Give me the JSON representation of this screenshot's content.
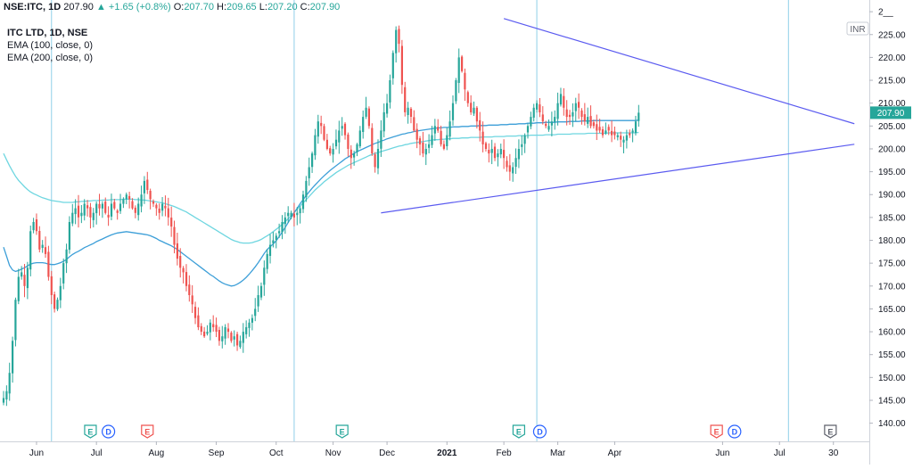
{
  "header": {
    "symbol": "NSE:ITC, 1D",
    "last": "207.90",
    "change": "▲ +1.65 (+0.8%)",
    "o_label": "O:",
    "o_value": "207.70",
    "h_label": "H:",
    "h_value": "209.65",
    "l_label": "L:",
    "l_value": "207.20",
    "c_label": "C:",
    "c_value": "207.90"
  },
  "legend": {
    "title": "ITC LTD, 1D, NSE",
    "ema1": "EMA (100, close, 0)",
    "ema2": "EMA (200, close, 0)"
  },
  "currency_badge": "INR",
  "price_label": "207.90",
  "colors": {
    "up": "#26a69a",
    "down": "#ef5350",
    "ema100": "#3d9fd8",
    "ema200": "#6ed6e0",
    "trendline": "#5b5bf0",
    "vline": "#8fcfe8",
    "price_badge": "#26a69a"
  },
  "chart_data": {
    "type": "candlestick",
    "ylim": [
      137,
      231
    ],
    "yticks": [
      "140.00",
      "145.00",
      "150.00",
      "155.00",
      "160.00",
      "165.00",
      "170.00",
      "175.00",
      "180.00",
      "185.00",
      "190.00",
      "195.00",
      "200.00",
      "205.00",
      "210.00",
      "215.00",
      "220.00",
      "225.00",
      "2__"
    ],
    "x_axis_labels": [
      {
        "label": "Jun",
        "index": 11
      },
      {
        "label": "Jul",
        "index": 31
      },
      {
        "label": "Aug",
        "index": 51
      },
      {
        "label": "Sep",
        "index": 71
      },
      {
        "label": "Oct",
        "index": 91
      },
      {
        "label": "Nov",
        "index": 110
      },
      {
        "label": "Dec",
        "index": 128
      },
      {
        "label": "2021",
        "index": 148
      },
      {
        "label": "Feb",
        "index": 167
      },
      {
        "label": "Mar",
        "index": 185
      },
      {
        "label": "Apr",
        "index": 204
      },
      {
        "label": "Jun",
        "index": 240
      },
      {
        "label": "Jul",
        "index": 259
      },
      {
        "label": "30",
        "index": 277
      }
    ],
    "vertical_lines": [
      16,
      97,
      178,
      262
    ],
    "event_markers": [
      {
        "type": "E",
        "index": 29,
        "color": "green"
      },
      {
        "type": "D",
        "index": 35,
        "color": "blue"
      },
      {
        "type": "E",
        "index": 48,
        "color": "red"
      },
      {
        "type": "E",
        "index": 113,
        "color": "green"
      },
      {
        "type": "E",
        "index": 172,
        "color": "green"
      },
      {
        "type": "D",
        "index": 179,
        "color": "blue"
      },
      {
        "type": "E",
        "index": 238,
        "color": "red"
      },
      {
        "type": "D",
        "index": 244,
        "color": "blue"
      },
      {
        "type": "E",
        "index": 276,
        "color": "grey"
      }
    ],
    "trendlines": [
      {
        "from": [
          167,
          228.5
        ],
        "to": [
          284,
          205.5
        ]
      },
      {
        "from": [
          126,
          186.0
        ],
        "to": [
          284,
          201.0
        ]
      }
    ],
    "closes": [
      145.5,
      147,
      151,
      158,
      167,
      172,
      173,
      170,
      174,
      182,
      184,
      182,
      178,
      179,
      177,
      172,
      168,
      165,
      167,
      170,
      175,
      178,
      184,
      186,
      187,
      185,
      186,
      188,
      187,
      185,
      186,
      188,
      187,
      188,
      186,
      185,
      188,
      187,
      186,
      188,
      189,
      190,
      189,
      187,
      186,
      188,
      190,
      193,
      191,
      189,
      188,
      187,
      186,
      188,
      187,
      185,
      183,
      179,
      176,
      174,
      173,
      170,
      168,
      166,
      163,
      161,
      160,
      159,
      160,
      162,
      161,
      160,
      158,
      159,
      161,
      160,
      158,
      159,
      157,
      158,
      160,
      161,
      162,
      163,
      165,
      168,
      170,
      174,
      177,
      179,
      180,
      181,
      182,
      184,
      185,
      186,
      186,
      185,
      186,
      187,
      190,
      193,
      196,
      199,
      203,
      206,
      205,
      202,
      200,
      199,
      200,
      202,
      204,
      205,
      203,
      200,
      198,
      199,
      201,
      204,
      207,
      209,
      205,
      199,
      196,
      200,
      204,
      208,
      210,
      215,
      221,
      226,
      223,
      214,
      208,
      209,
      207,
      204,
      202,
      201,
      199,
      200,
      201,
      203,
      205,
      204,
      201,
      200,
      203,
      206,
      210,
      215,
      220,
      217,
      213,
      210,
      208,
      209,
      206,
      204,
      201,
      200,
      199,
      200,
      198,
      199,
      200,
      198,
      196,
      195,
      196,
      198,
      200,
      201,
      203,
      205,
      207,
      209,
      210,
      208,
      206,
      205,
      205,
      206,
      207,
      210,
      212,
      209,
      207,
      207,
      208,
      210,
      209,
      207,
      206,
      207,
      205,
      205,
      204,
      204,
      203,
      204,
      204,
      203,
      203,
      203,
      202,
      202,
      203,
      203,
      204,
      206,
      207.9
    ],
    "ema100": [
      178.5,
      176.5,
      174.5,
      173.5,
      173.2,
      173.4,
      173.7,
      174,
      174.4,
      174.8,
      175,
      175.1,
      175.1,
      175.1,
      175,
      174.8,
      174.7,
      174.7,
      174.9,
      175.1,
      175.4,
      175.8,
      176.4,
      176.9,
      177.3,
      177.6,
      178,
      178.4,
      178.7,
      179,
      179.3,
      179.7,
      180,
      180.3,
      180.6,
      180.9,
      181.2,
      181.4,
      181.6,
      181.7,
      181.8,
      181.9,
      181.8,
      181.7,
      181.6,
      181.5,
      181.4,
      181.3,
      181.2,
      181,
      180.7,
      180.4,
      180,
      179.7,
      179.4,
      179.1,
      178.8,
      178.4,
      178,
      177.5,
      177,
      176.5,
      176,
      175.5,
      175,
      174.5,
      174,
      173.5,
      173,
      172.5,
      172.1,
      171.6,
      171.1,
      170.7,
      170.4,
      170.2,
      170,
      170.1,
      170.4,
      170.8,
      171.3,
      171.9,
      172.6,
      173.4,
      174.2,
      175.1,
      176.1,
      177.1,
      178,
      178.6,
      179.2,
      179.9,
      180.8,
      181.8,
      182.8,
      183.9,
      185,
      186,
      187,
      188,
      188.9,
      189.8,
      190.6,
      191.4,
      192.1,
      192.8,
      193.5,
      194.1,
      194.7,
      195.3,
      195.8,
      196.3,
      196.8,
      197.3,
      197.8,
      198.2,
      198.6,
      199,
      199.4,
      199.7,
      200,
      200.3,
      200.6,
      200.9,
      201.2,
      201.4,
      201.7,
      201.9,
      202.2,
      202.4,
      202.6,
      202.8,
      203,
      203.2,
      203.3,
      203.5,
      203.6,
      203.8,
      203.9,
      204,
      204.1,
      204.2,
      204.3,
      204.4,
      204.5,
      204.6,
      204.6,
      204.7,
      204.7,
      204.7,
      204.8,
      204.8,
      204.8,
      204.9,
      204.9,
      204.9,
      205,
      205,
      205,
      205.1,
      205.1,
      205.1,
      205.2,
      205.2,
      205.2,
      205.2,
      205.3,
      205.3,
      205.3,
      205.4,
      205.4,
      205.4,
      205.5,
      205.5,
      205.5,
      205.6,
      205.6,
      205.6,
      205.7,
      205.7,
      205.7,
      205.8,
      205.8,
      205.8,
      205.8,
      205.9,
      205.9,
      205.9,
      205.9,
      206,
      206,
      206,
      206,
      206.1,
      206.1,
      206.1,
      206.1,
      206.2,
      206.2,
      206.2,
      206.2,
      206.2,
      206.2,
      206.2,
      206.2,
      206.2,
      206.2,
      206.2,
      206.2,
      206.2,
      206.2,
      206.2,
      206.3
    ],
    "ema200": [
      199,
      197.6,
      196.3,
      195.1,
      194,
      193.1,
      192.4,
      191.7,
      191.1,
      190.6,
      190.2,
      189.9,
      189.6,
      189.3,
      189.1,
      188.9,
      188.7,
      188.6,
      188.5,
      188.4,
      188.3,
      188.3,
      188.3,
      188.3,
      188.4,
      188.4,
      188.5,
      188.5,
      188.6,
      188.6,
      188.7,
      188.7,
      188.7,
      188.8,
      188.8,
      188.8,
      188.9,
      188.9,
      188.9,
      188.9,
      189,
      189,
      189,
      189,
      188.9,
      188.9,
      188.8,
      188.8,
      188.7,
      188.6,
      188.5,
      188.4,
      188.3,
      188.2,
      188,
      187.8,
      187.6,
      187.4,
      187.1,
      186.8,
      186.5,
      186.2,
      185.8,
      185.4,
      185,
      184.6,
      184.2,
      183.8,
      183.4,
      183,
      182.6,
      182.2,
      181.8,
      181.4,
      181,
      180.6,
      180.2,
      179.9,
      179.7,
      179.5,
      179.4,
      179.4,
      179.4,
      179.5,
      179.7,
      179.9,
      180.2,
      180.6,
      181,
      181.4,
      181.9,
      182.4,
      182.9,
      183.5,
      184.1,
      184.7,
      185.4,
      186.1,
      186.8,
      187.5,
      188.2,
      188.9,
      189.6,
      190.3,
      191,
      191.6,
      192.2,
      192.8,
      193.3,
      193.8,
      194.3,
      194.8,
      195.2,
      195.6,
      196,
      196.4,
      196.7,
      197,
      197.3,
      197.6,
      197.9,
      198.2,
      198.5,
      198.8,
      199,
      199.2,
      199.4,
      199.6,
      199.8,
      200,
      200.2,
      200.4,
      200.6,
      200.7,
      200.9,
      201,
      201.2,
      201.3,
      201.4,
      201.5,
      201.6,
      201.7,
      201.8,
      201.9,
      202,
      202,
      202.1,
      202.1,
      202.2,
      202.2,
      202.3,
      202.3,
      202.3,
      202.4,
      202.4,
      202.4,
      202.5,
      202.5,
      202.5,
      202.5,
      202.6,
      202.6,
      202.6,
      202.6,
      202.7,
      202.7,
      202.7,
      202.7,
      202.8,
      202.8,
      202.8,
      202.8,
      202.9,
      202.9,
      202.9,
      202.9,
      203,
      203,
      203,
      203,
      203,
      203.1,
      203.1,
      203.1,
      203.1,
      203.2,
      203.2,
      203.2,
      203.2,
      203.2,
      203.3,
      203.3,
      203.3,
      203.3,
      203.3,
      203.4,
      203.4,
      203.4,
      203.4,
      203.4,
      203.4,
      203.4,
      203.5,
      203.5,
      203.5,
      203.5,
      203.5,
      203.5,
      203.5,
      203.5,
      203.5,
      203.5,
      203.6
    ]
  }
}
